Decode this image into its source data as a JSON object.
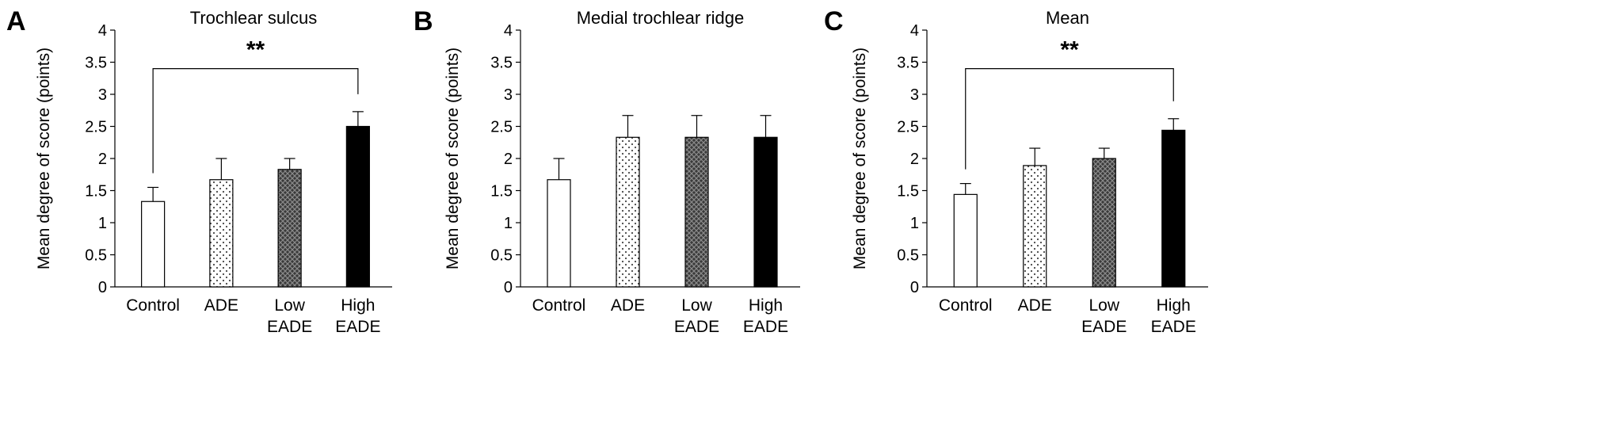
{
  "figure": {
    "panel_letters": [
      "A",
      "B",
      "C"
    ]
  },
  "chart_data": [
    {
      "type": "bar",
      "panel": "A",
      "title": "Trochlear sulcus",
      "ylabel": "Mean degree of score (points)",
      "xlabel": "",
      "ylim": [
        0,
        4
      ],
      "yticks": [
        0,
        0.5,
        1,
        1.5,
        2,
        2.5,
        3,
        3.5,
        4
      ],
      "ytick_labels": [
        "0",
        "0.5",
        "1",
        "1.5",
        "2",
        "2.5",
        "3",
        "3.5",
        "4"
      ],
      "grid": false,
      "categories": [
        [
          "Control"
        ],
        [
          "ADE"
        ],
        [
          "Low",
          "EADE"
        ],
        [
          "High",
          "EADE"
        ]
      ],
      "values": [
        1.33,
        1.67,
        1.83,
        2.5
      ],
      "errors": [
        0.22,
        0.33,
        0.17,
        0.23
      ],
      "fills": [
        "white",
        "dots",
        "crosshatch",
        "black"
      ],
      "significance": {
        "from": 0,
        "to": 3,
        "y": 3.4,
        "label": "**"
      }
    },
    {
      "type": "bar",
      "panel": "B",
      "title": "Medial trochlear ridge",
      "ylabel": "Mean degree of score (points)",
      "xlabel": "",
      "ylim": [
        0,
        4
      ],
      "yticks": [
        0,
        0.5,
        1,
        1.5,
        2,
        2.5,
        3,
        3.5,
        4
      ],
      "ytick_labels": [
        "0",
        "0.5",
        "1",
        "1.5",
        "2",
        "2.5",
        "3",
        "3.5",
        "4"
      ],
      "grid": false,
      "categories": [
        [
          "Control"
        ],
        [
          "ADE"
        ],
        [
          "Low",
          "EADE"
        ],
        [
          "High",
          "EADE"
        ]
      ],
      "values": [
        1.67,
        2.33,
        2.33,
        2.33
      ],
      "errors": [
        0.33,
        0.34,
        0.34,
        0.34
      ],
      "fills": [
        "white",
        "dots",
        "crosshatch",
        "black"
      ],
      "significance": null
    },
    {
      "type": "bar",
      "panel": "C",
      "title": "Mean",
      "ylabel": "Mean degree of score (points)",
      "xlabel": "",
      "ylim": [
        0,
        4
      ],
      "yticks": [
        0,
        0.5,
        1,
        1.5,
        2,
        2.5,
        3,
        3.5,
        4
      ],
      "ytick_labels": [
        "0",
        "0.5",
        "1",
        "1.5",
        "2",
        "2.5",
        "3",
        "3.5",
        "4"
      ],
      "grid": false,
      "categories": [
        [
          "Control"
        ],
        [
          "ADE"
        ],
        [
          "Low",
          "EADE"
        ],
        [
          "High",
          "EADE"
        ]
      ],
      "values": [
        1.44,
        1.89,
        2.0,
        2.44
      ],
      "errors": [
        0.17,
        0.27,
        0.16,
        0.18
      ],
      "fills": [
        "white",
        "dots",
        "crosshatch",
        "black"
      ],
      "significance": {
        "from": 0,
        "to": 3,
        "y": 3.4,
        "label": "**"
      }
    }
  ]
}
